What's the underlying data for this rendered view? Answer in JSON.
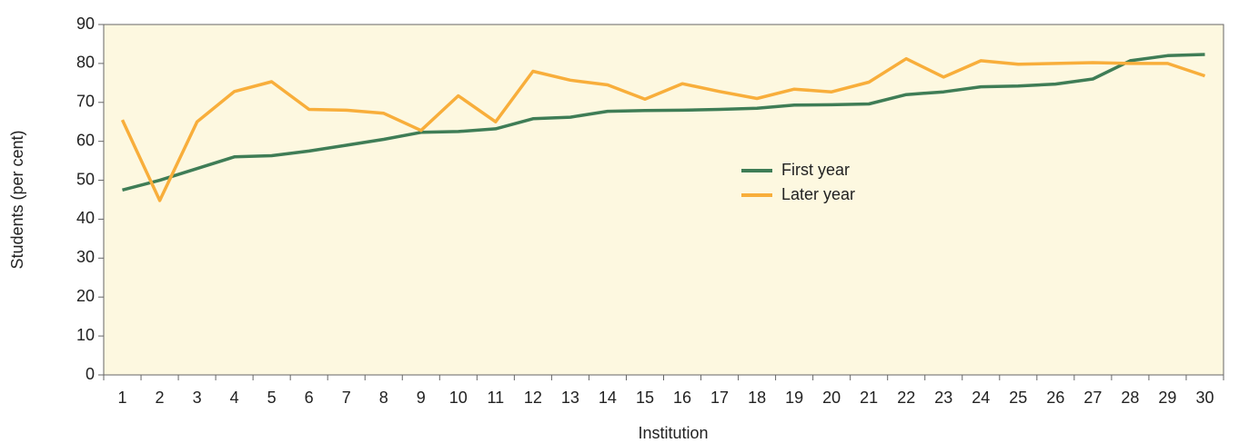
{
  "chart_data": {
    "type": "line",
    "x_label": "Institution",
    "y_label": "Students (per cent)",
    "categories": [
      "1",
      "2",
      "3",
      "4",
      "5",
      "6",
      "7",
      "8",
      "9",
      "10",
      "11",
      "12",
      "13",
      "14",
      "15",
      "16",
      "17",
      "18",
      "19",
      "20",
      "21",
      "22",
      "23",
      "24",
      "25",
      "26",
      "27",
      "28",
      "29",
      "30"
    ],
    "series": [
      {
        "name": "First year",
        "color": "#3f7d56",
        "values": [
          47.5,
          50,
          53,
          56,
          56.3,
          57.5,
          59,
          60.5,
          62.3,
          62.5,
          63.2,
          65.8,
          66.2,
          67.7,
          67.9,
          68,
          68.2,
          68.5,
          69.3,
          69.4,
          69.6,
          72,
          72.7,
          74,
          74.2,
          74.7,
          76,
          80.7,
          82,
          82.3
        ]
      },
      {
        "name": "Later year",
        "color": "#f8ae3b",
        "values": [
          65.5,
          44.8,
          65,
          72.8,
          75.3,
          68.2,
          68,
          67.2,
          62.8,
          71.7,
          65,
          78,
          75.7,
          74.5,
          70.8,
          74.8,
          72.8,
          71,
          73.4,
          72.7,
          75.2,
          81.2,
          76.5,
          80.7,
          79.8,
          80,
          80.2,
          80,
          80,
          76.8
        ]
      }
    ],
    "ylim": [
      0,
      90
    ],
    "yticks": [
      0,
      10,
      20,
      30,
      40,
      50,
      60,
      70,
      80,
      90
    ],
    "plot_background": "#fdf8e0",
    "legend": "center"
  }
}
